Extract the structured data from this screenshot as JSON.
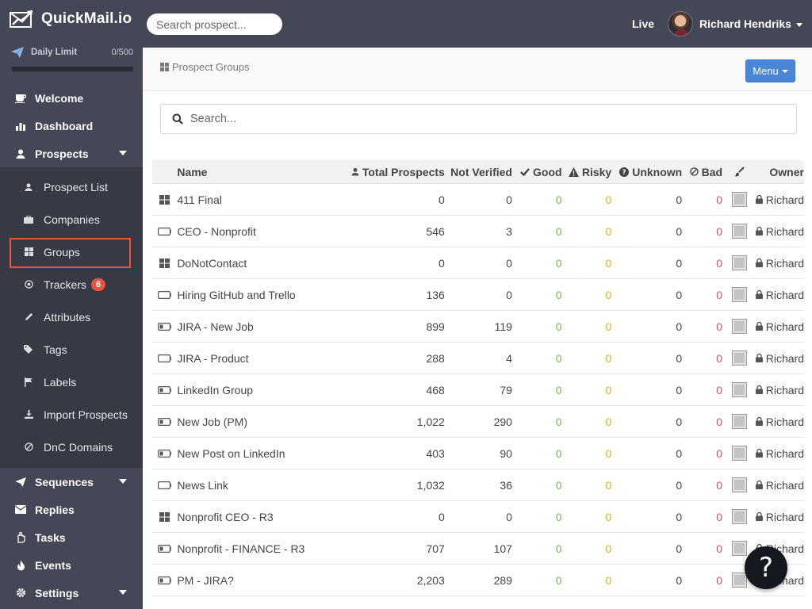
{
  "app": {
    "name": "QuickMail.io"
  },
  "sidebar": {
    "daily_limit_label": "Daily Limit",
    "daily_limit_count": "0/500",
    "daily_limit_progress": 0,
    "nav": [
      {
        "label": "Welcome",
        "icon": "coffee-icon"
      },
      {
        "label": "Dashboard",
        "icon": "bar-chart-icon"
      },
      {
        "label": "Prospects",
        "icon": "user-icon"
      }
    ],
    "sub": [
      {
        "label": "Prospect List",
        "icon": "user-icon"
      },
      {
        "label": "Companies",
        "icon": "briefcase-icon"
      },
      {
        "label": "Groups",
        "icon": "grid-icon"
      },
      {
        "label": "Trackers",
        "icon": "target-icon",
        "badge": "6"
      },
      {
        "label": "Attributes",
        "icon": "pencil-icon"
      },
      {
        "label": "Tags",
        "icon": "tags-icon"
      },
      {
        "label": "Labels",
        "icon": "flag-icon"
      },
      {
        "label": "Import Prospects",
        "icon": "download-icon"
      },
      {
        "label": "DnC Domains",
        "icon": "ban-icon"
      }
    ],
    "nav2": [
      {
        "label": "Sequences",
        "icon": "paper-plane-icon"
      },
      {
        "label": "Replies",
        "icon": "envelope-icon"
      },
      {
        "label": "Tasks",
        "icon": "hand-icon"
      },
      {
        "label": "Events",
        "icon": "fire-icon"
      },
      {
        "label": "Settings",
        "icon": "gear-icon"
      }
    ],
    "active_item": "Groups"
  },
  "topbar": {
    "search_placeholder": "Search prospect...",
    "live_label": "Live",
    "user_name": "Richard Hendriks"
  },
  "header": {
    "breadcrumb": "Prospect Groups",
    "menu_label": "Menu"
  },
  "content": {
    "search_placeholder": "Search..."
  },
  "table": {
    "columns": {
      "name": "Name",
      "total": "Total Prospects",
      "not_verified": "Not Verified",
      "good": "Good",
      "risky": "Risky",
      "unknown": "Unknown",
      "bad": "Bad",
      "owner": "Owner"
    },
    "rows": [
      {
        "icon": "grid-icon",
        "name": "411 Final",
        "total": "0",
        "not_verified": "0",
        "good": "0",
        "risky": "0",
        "unknown": "0",
        "bad": "0",
        "owner": "Richard"
      },
      {
        "icon": "battery-empty-icon",
        "name": "CEO - Nonprofit",
        "total": "546",
        "not_verified": "3",
        "good": "0",
        "risky": "0",
        "unknown": "0",
        "bad": "0",
        "owner": "Richard"
      },
      {
        "icon": "grid-icon",
        "name": "DoNotContact",
        "total": "0",
        "not_verified": "0",
        "good": "0",
        "risky": "0",
        "unknown": "0",
        "bad": "0",
        "owner": "Richard"
      },
      {
        "icon": "battery-empty-icon",
        "name": "Hiring GitHub and Trello",
        "total": "136",
        "not_verified": "0",
        "good": "0",
        "risky": "0",
        "unknown": "0",
        "bad": "0",
        "owner": "Richard"
      },
      {
        "icon": "battery-low-icon",
        "name": "JIRA - New Job",
        "total": "899",
        "not_verified": "119",
        "good": "0",
        "risky": "0",
        "unknown": "0",
        "bad": "0",
        "owner": "Richard"
      },
      {
        "icon": "battery-empty-icon",
        "name": "JIRA - Product",
        "total": "288",
        "not_verified": "4",
        "good": "0",
        "risky": "0",
        "unknown": "0",
        "bad": "0",
        "owner": "Richard"
      },
      {
        "icon": "battery-low-icon",
        "name": "LinkedIn Group",
        "total": "468",
        "not_verified": "79",
        "good": "0",
        "risky": "0",
        "unknown": "0",
        "bad": "0",
        "owner": "Richard"
      },
      {
        "icon": "battery-low-icon",
        "name": "New Job (PM)",
        "total": "1,022",
        "not_verified": "290",
        "good": "0",
        "risky": "0",
        "unknown": "0",
        "bad": "0",
        "owner": "Richard"
      },
      {
        "icon": "battery-low-icon",
        "name": "New Post on LinkedIn",
        "total": "403",
        "not_verified": "90",
        "good": "0",
        "risky": "0",
        "unknown": "0",
        "bad": "0",
        "owner": "Richard"
      },
      {
        "icon": "battery-empty-icon",
        "name": "News Link",
        "total": "1,032",
        "not_verified": "36",
        "good": "0",
        "risky": "0",
        "unknown": "0",
        "bad": "0",
        "owner": "Richard"
      },
      {
        "icon": "grid-icon",
        "name": "Nonprofit CEO - R3",
        "total": "0",
        "not_verified": "0",
        "good": "0",
        "risky": "0",
        "unknown": "0",
        "bad": "0",
        "owner": "Richard"
      },
      {
        "icon": "battery-low-icon",
        "name": "Nonprofit - FINANCE - R3",
        "total": "707",
        "not_verified": "107",
        "good": "0",
        "risky": "0",
        "unknown": "0",
        "bad": "0",
        "owner": "Richard"
      },
      {
        "icon": "battery-low-icon",
        "name": "PM - JIRA?",
        "total": "2,203",
        "not_verified": "289",
        "good": "0",
        "risky": "0",
        "unknown": "0",
        "bad": "0",
        "owner": "Richard"
      }
    ]
  },
  "help_label": "?"
}
